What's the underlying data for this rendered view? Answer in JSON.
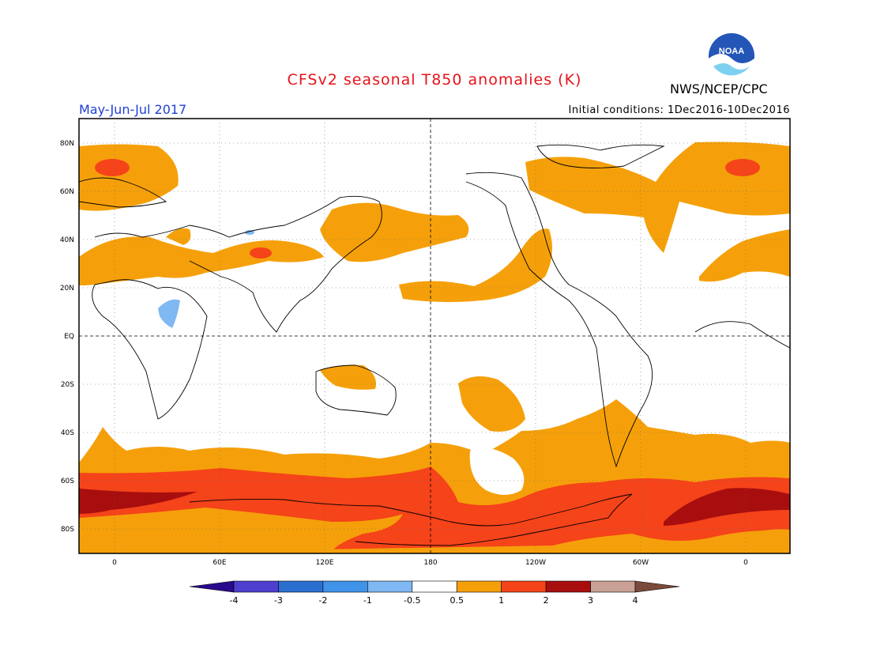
{
  "header": {
    "title": "CFSv2 seasonal T850 anomalies (K)",
    "agency": "NWS/NCEP/CPC",
    "period": "May-Jun-Jul 2017",
    "initial_conditions": "Initial conditions: 1Dec2016-10Dec2016",
    "title_color": "#e4141b",
    "period_color": "#1f3fd8"
  },
  "logo": {
    "icon": "noaa-logo",
    "text": "NOAA"
  },
  "map": {
    "lat_labels": [
      "80N",
      "60N",
      "40N",
      "20N",
      "EQ",
      "20S",
      "40S",
      "60S",
      "80S"
    ],
    "lon_labels": [
      "0",
      "60E",
      "120E",
      "180",
      "120W",
      "60W",
      "0"
    ]
  },
  "colorbar": {
    "labels": [
      "-4",
      "-3",
      "-2",
      "-1",
      "-0.5",
      "0.5",
      "1",
      "2",
      "3",
      "4"
    ],
    "colors": [
      "#2a0a8c",
      "#4e3fcf",
      "#2b6fd0",
      "#3f93e8",
      "#7fb8f2",
      "#ffffff",
      "#f5a00a",
      "#f5431a",
      "#a80e0e",
      "#c9a194",
      "#7a4a3a"
    ]
  }
}
